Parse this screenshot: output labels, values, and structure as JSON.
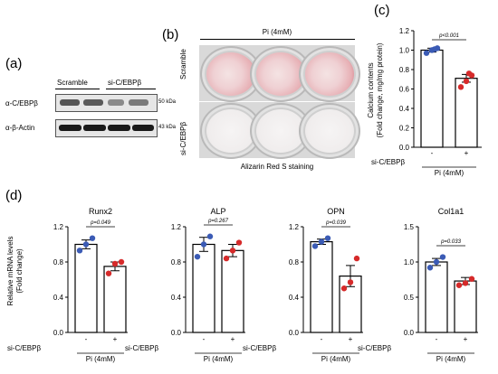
{
  "panel_labels": {
    "a": "(a)",
    "b": "(b)",
    "c": "(c)",
    "d": "(d)"
  },
  "panel_a": {
    "columns": [
      "Scramble",
      "si-C/EBPβ"
    ],
    "rows": [
      {
        "label": "α-C/EBPβ",
        "size": "50 kDa"
      },
      {
        "label": "α-β-Actin",
        "size": "43 kDa"
      }
    ]
  },
  "panel_b": {
    "header": "Pi (4mM)",
    "row_labels": [
      "Scramble",
      "si-C/EBPβ"
    ],
    "footer": "Alizarin Red S staining"
  },
  "panel_c": {
    "ylabel_line1": "Calcium contents",
    "ylabel_line2": "(Fold change, mg/mg protein)",
    "pvalue": "p<0.001",
    "xrow_label": "si-C/EBPβ",
    "x_signs": [
      "-",
      "+"
    ],
    "x_group": "Pi (4mM)"
  },
  "panel_d": {
    "ylabel_line1": "Relative mRNA levels",
    "ylabel_line2": "(Fold change)",
    "xrow_label": "si-C/EBPβ",
    "x_signs": [
      "-",
      "+"
    ],
    "x_group": "Pi (4mM)"
  },
  "colors": {
    "blue": "#3b5bb5",
    "red": "#d62a2a"
  },
  "chart_data": [
    {
      "type": "bar",
      "title": "",
      "categories": [
        "-",
        "+"
      ],
      "ylabel": "Calcium contents (Fold change, mg/mg protein)",
      "ylim": [
        0,
        1.2
      ],
      "yticks": [
        "0.0",
        "0.2",
        "0.4",
        "0.6",
        "0.8",
        "1.0",
        "1.2"
      ],
      "means": [
        1.0,
        0.71
      ],
      "sem": [
        0.02,
        0.04
      ],
      "points": [
        [
          0.97,
          1.0,
          1.02,
          1.01
        ],
        [
          0.62,
          0.68,
          0.74,
          0.76
        ]
      ],
      "pvalue": "p<0.001"
    },
    {
      "type": "bar",
      "title": "Runx2",
      "categories": [
        "-",
        "+"
      ],
      "ylim": [
        0,
        1.2
      ],
      "yticks": [
        "0.0",
        "0.4",
        "0.8",
        "1.2"
      ],
      "means": [
        1.0,
        0.75
      ],
      "sem": [
        0.05,
        0.05
      ],
      "points": [
        [
          0.93,
          1.0,
          1.07
        ],
        [
          0.67,
          0.78,
          0.8
        ]
      ],
      "pvalue": "p=0.049"
    },
    {
      "type": "bar",
      "title": "ALP",
      "categories": [
        "-",
        "+"
      ],
      "ylim": [
        0,
        1.2
      ],
      "yticks": [
        "0.0",
        "0.4",
        "0.8",
        "1.2"
      ],
      "means": [
        1.0,
        0.93
      ],
      "sem": [
        0.08,
        0.07
      ],
      "points": [
        [
          0.86,
          1.0,
          1.09
        ],
        [
          0.84,
          0.93,
          1.02
        ]
      ],
      "pvalue": "p=0.267"
    },
    {
      "type": "bar",
      "title": "OPN",
      "categories": [
        "-",
        "+"
      ],
      "ylim": [
        0,
        1.2
      ],
      "yticks": [
        "0.0",
        "0.4",
        "0.8",
        "1.2"
      ],
      "means": [
        1.03,
        0.64
      ],
      "sem": [
        0.03,
        0.12
      ],
      "points": [
        [
          0.98,
          1.03,
          1.07
        ],
        [
          0.5,
          0.57,
          0.84
        ]
      ],
      "pvalue": "p=0.039"
    },
    {
      "type": "bar",
      "title": "Col1a1",
      "categories": [
        "-",
        "+"
      ],
      "ylim": [
        0,
        1.5
      ],
      "yticks": [
        "0.0",
        "0.5",
        "1.0",
        "1.5"
      ],
      "means": [
        1.0,
        0.73
      ],
      "sem": [
        0.05,
        0.05
      ],
      "points": [
        [
          0.92,
          1.0,
          1.07
        ],
        [
          0.67,
          0.7,
          0.76
        ]
      ],
      "pvalue": "p=0.033"
    }
  ]
}
